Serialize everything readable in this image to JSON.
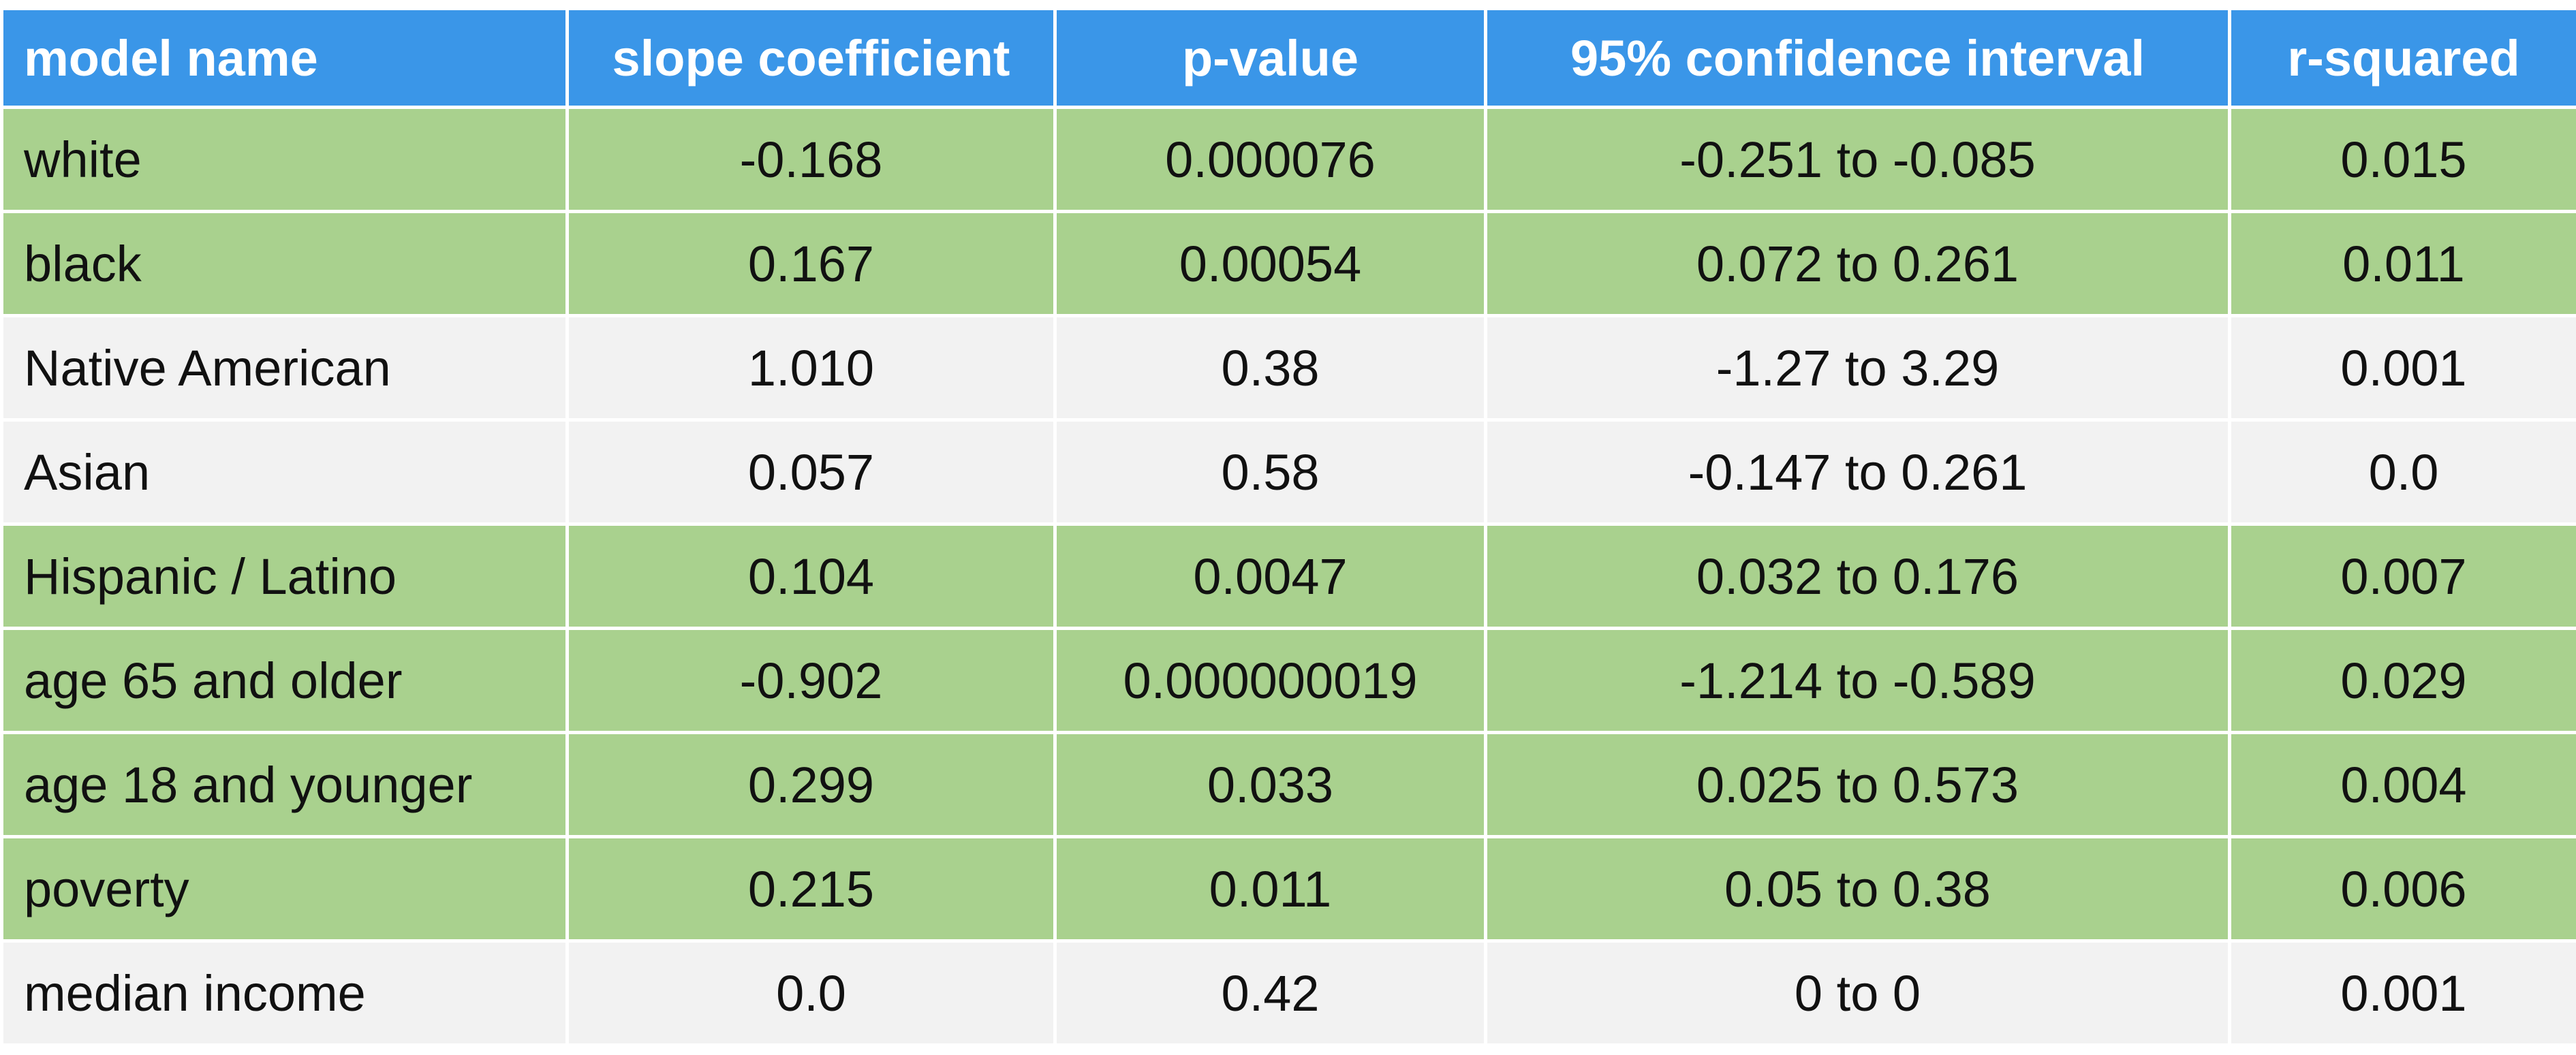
{
  "table": {
    "header_color": "#3a96e8",
    "header": [
      "model name",
      "slope coefficient",
      "p-value",
      "95% confidence interval",
      "r-squared"
    ],
    "rows": [
      {
        "color": "#a9d18e",
        "cells": [
          "white",
          "-0.168",
          "0.000076",
          "-0.251 to -0.085",
          "0.015"
        ]
      },
      {
        "color": "#a9d18e",
        "cells": [
          "black",
          "0.167",
          "0.00054",
          "0.072 to 0.261",
          "0.011"
        ]
      },
      {
        "color": "#f2f2f2",
        "cells": [
          "Native American",
          "1.010",
          "0.38",
          "-1.27 to 3.29",
          "0.001"
        ]
      },
      {
        "color": "#f2f2f2",
        "cells": [
          "Asian",
          "0.057",
          "0.58",
          "-0.147 to 0.261",
          "0.0"
        ]
      },
      {
        "color": "#a9d18e",
        "cells": [
          "Hispanic / Latino",
          "0.104",
          "0.0047",
          "0.032 to 0.176",
          "0.007"
        ]
      },
      {
        "color": "#a9d18e",
        "cells": [
          "age 65 and older",
          "-0.902",
          "0.000000019",
          "-1.214 to -0.589",
          "0.029"
        ]
      },
      {
        "color": "#a9d18e",
        "cells": [
          "age 18 and younger",
          "0.299",
          "0.033",
          "0.025 to 0.573",
          "0.004"
        ]
      },
      {
        "color": "#a9d18e",
        "cells": [
          "poverty",
          "0.215",
          "0.011",
          "0.05 to 0.38",
          "0.006"
        ]
      },
      {
        "color": "#f2f2f2",
        "cells": [
          "median income",
          "0.0",
          "0.42",
          "0 to 0",
          "0.001"
        ]
      }
    ]
  }
}
